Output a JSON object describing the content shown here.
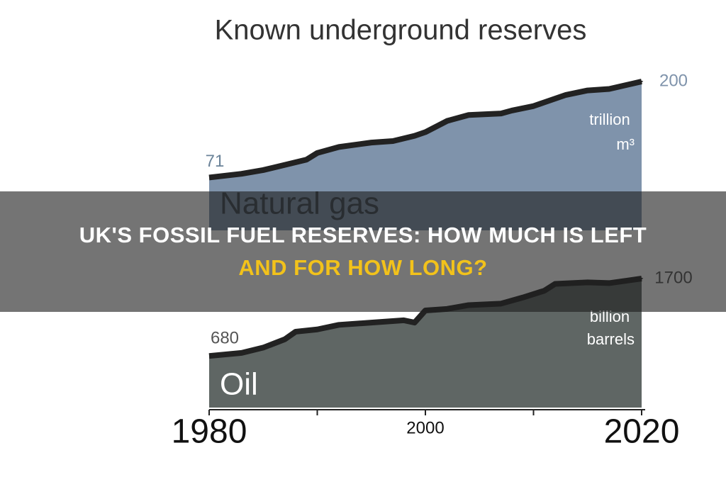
{
  "article": {
    "headline_lines": [
      "UK'S FOSSIL FUEL RESERVES: HOW MUCH IS LEFT",
      "AND FOR HOW LONG?"
    ]
  },
  "chart_data": [
    {
      "type": "area",
      "title": "Known underground reserves",
      "label": "Natural gas",
      "unit_lines": [
        "trillion",
        "m³"
      ],
      "color": "#7f93ab",
      "line_color": "#222222",
      "x": [
        1980,
        1983,
        1985,
        1987,
        1989,
        1990,
        1992,
        1995,
        1997,
        1999,
        2000,
        2002,
        2004,
        2007,
        2008,
        2010,
        2011,
        2013,
        2015,
        2017,
        2020
      ],
      "values": [
        71,
        76,
        81,
        88,
        95,
        104,
        112,
        118,
        120,
        127,
        132,
        147,
        155,
        157,
        161,
        167,
        172,
        182,
        188,
        190,
        200
      ],
      "xlim": [
        1980,
        2020
      ],
      "ylim": [
        0,
        200
      ]
    },
    {
      "type": "area",
      "label": "Oil",
      "unit_lines": [
        "billion",
        "barrels"
      ],
      "color": "#5f6664",
      "line_color": "#222222",
      "x": [
        1980,
        1983,
        1985,
        1987,
        1988,
        1990,
        1992,
        1995,
        1998,
        1999,
        2000,
        2002,
        2004,
        2007,
        2009,
        2011,
        2012,
        2015,
        2017,
        2020
      ],
      "values": [
        680,
        720,
        790,
        900,
        1000,
        1030,
        1090,
        1120,
        1150,
        1120,
        1280,
        1300,
        1350,
        1370,
        1450,
        1540,
        1630,
        1650,
        1640,
        1700
      ],
      "xlim": [
        1980,
        2020
      ],
      "ylim": [
        0,
        1700
      ],
      "xticks": [
        1980,
        2000,
        2020
      ],
      "minor_xticks": [
        1990,
        2010
      ]
    }
  ]
}
